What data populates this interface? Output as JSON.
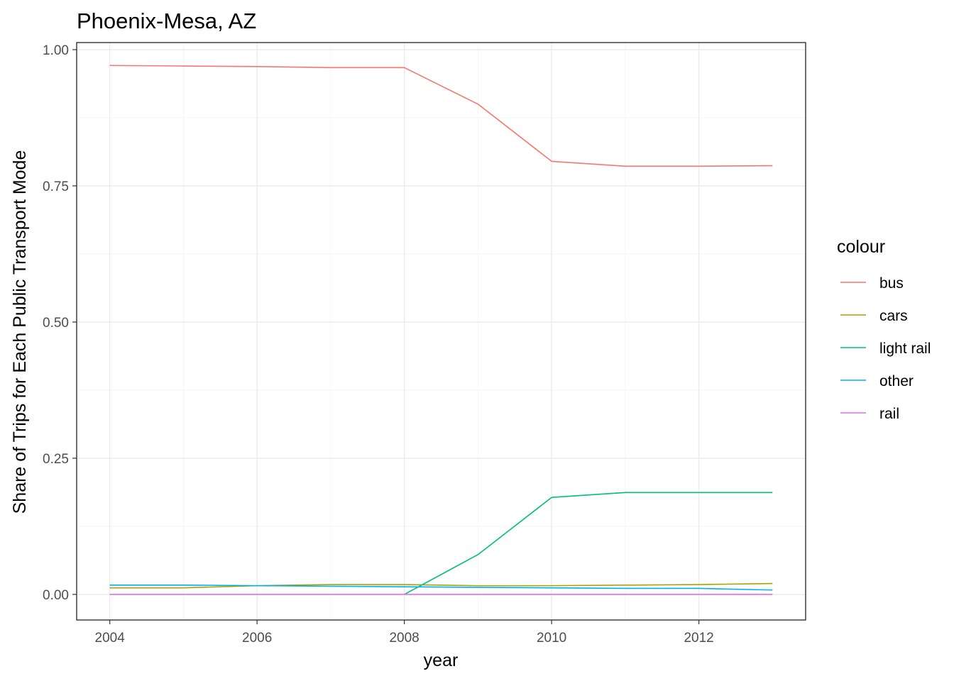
{
  "chart_data": {
    "type": "line",
    "title": "Phoenix-Mesa, AZ",
    "xlabel": "year",
    "ylabel": "Share of Trips for Each Public Transport Mode",
    "xlim": [
      2003.55,
      2013.45
    ],
    "ylim": [
      -0.047,
      1.013
    ],
    "x_ticks": [
      2004,
      2006,
      2008,
      2010,
      2012
    ],
    "x_tick_labels": [
      "2004",
      "2006",
      "2008",
      "2010",
      "2012"
    ],
    "y_ticks": [
      0,
      0.25,
      0.5,
      0.75,
      1.0
    ],
    "y_tick_labels": [
      "0.00",
      "0.25",
      "0.50",
      "0.75",
      "1.00"
    ],
    "grid": true,
    "legend_title": "colour",
    "legend_position": "right",
    "x": [
      2004,
      2005,
      2006,
      2007,
      2008,
      2009,
      2010,
      2011,
      2012,
      2013
    ],
    "series": [
      {
        "name": "bus",
        "color": "#F8766D",
        "values": [
          0.971,
          0.97,
          0.969,
          0.967,
          0.967,
          0.9,
          0.795,
          0.786,
          0.786,
          0.787
        ]
      },
      {
        "name": "cars",
        "color": "#A3A500",
        "values": [
          0.012,
          0.012,
          0.016,
          0.018,
          0.018,
          0.016,
          0.016,
          0.017,
          0.018,
          0.02
        ]
      },
      {
        "name": "light rail",
        "color": "#00BF7D",
        "values": [
          null,
          null,
          null,
          null,
          0.0,
          0.073,
          0.178,
          0.187,
          0.187,
          0.187
        ]
      },
      {
        "name": "other",
        "color": "#00B0F6",
        "values": [
          0.017,
          0.017,
          0.016,
          0.015,
          0.014,
          0.013,
          0.012,
          0.011,
          0.011,
          0.008
        ]
      },
      {
        "name": "rail",
        "color": "#E76BF3",
        "values": [
          0.0,
          0.0,
          0.0,
          0.0,
          0.0,
          0.0,
          0.0,
          0.0,
          0.0,
          0.0
        ]
      }
    ]
  }
}
